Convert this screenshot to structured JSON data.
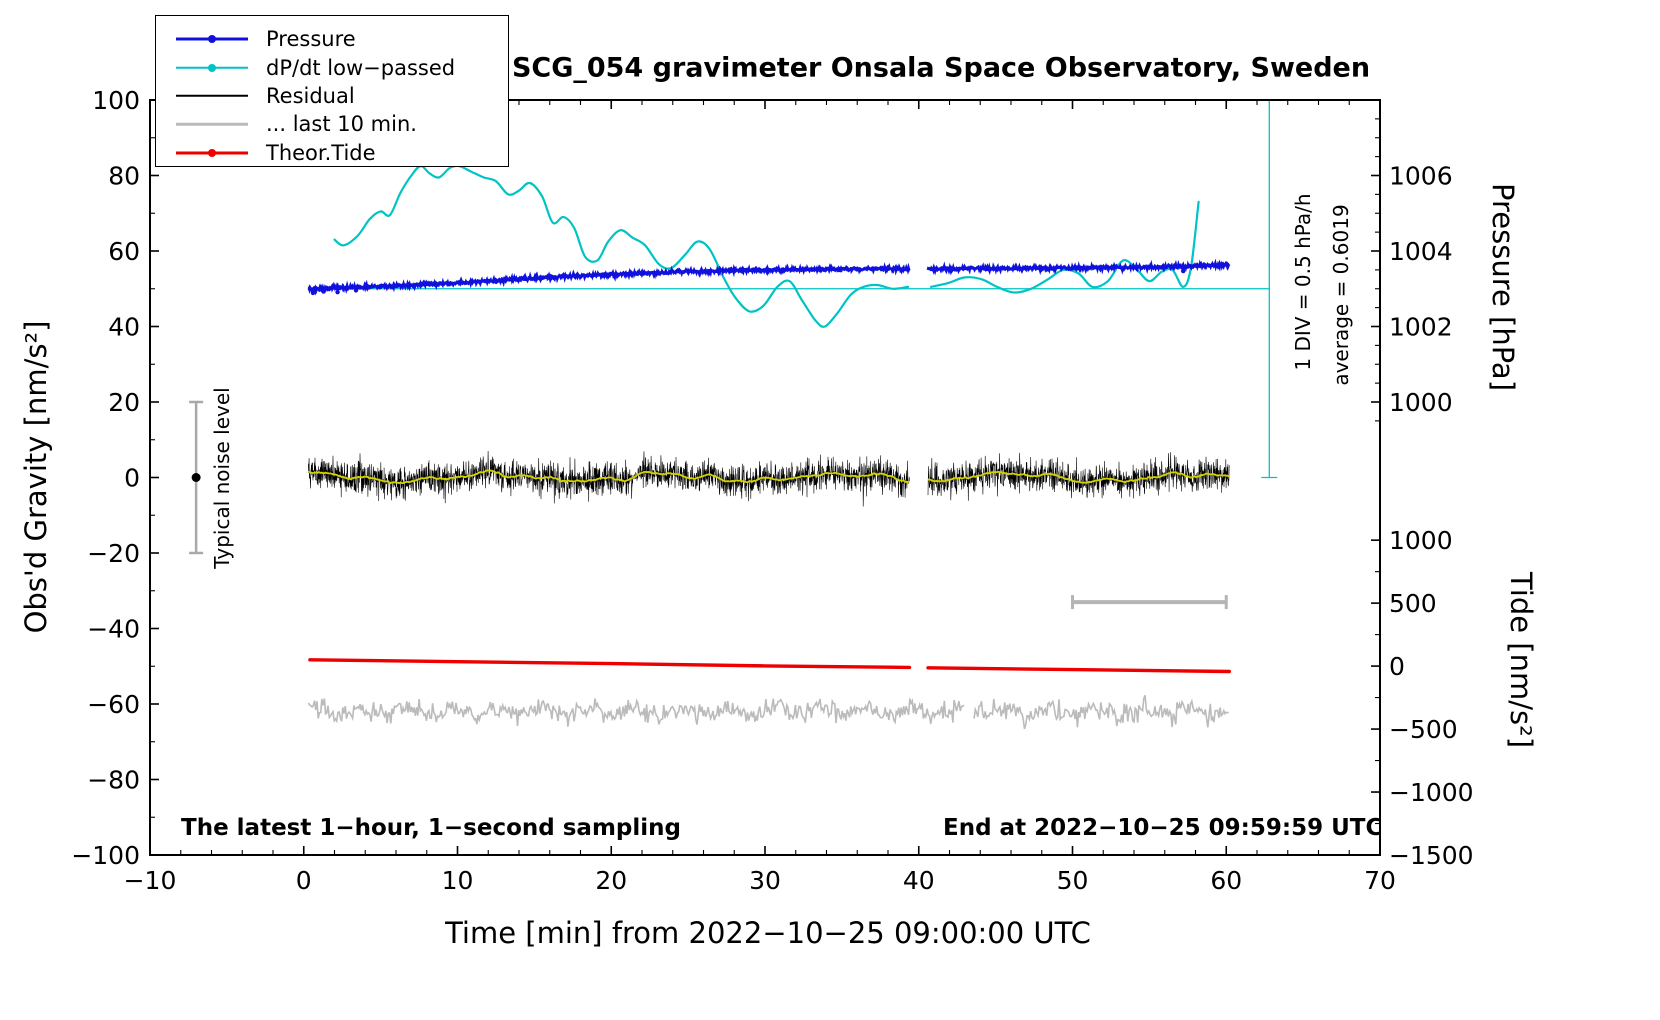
{
  "title": "SCG_054 gravimeter Onsala Space Observatory, Sweden",
  "footer": {
    "left": "The latest 1−hour, 1−second sampling",
    "right": "End at 2022−10−25 09:59:59 UTC"
  },
  "annotations": {
    "noise_level": "Typical noise level",
    "div_scale": "1 DIV = 0.5 hPa/h",
    "average": "average = 0.6019"
  },
  "axes": {
    "x": {
      "label": "Time [min] from 2022−10−25 09:00:00 UTC",
      "min": -10,
      "max": 70,
      "major_ticks": [
        -10,
        0,
        10,
        20,
        30,
        40,
        50,
        60,
        70
      ],
      "minor_step": 2
    },
    "y_left": {
      "label": "Obs'd Gravity [nm/s²]",
      "min": -100,
      "max": 100,
      "major_ticks": [
        -100,
        -80,
        -60,
        -40,
        -20,
        0,
        20,
        40,
        60,
        80,
        100
      ],
      "minor_step": 10
    },
    "y_pressure": {
      "label": "Pressure [hPa]",
      "major_ticks": [
        1000,
        1002,
        1004,
        1006
      ],
      "minor_step": 0.5,
      "hpa_at_y50": 1003,
      "gravity_units_per_hpa": 10,
      "minor_range": [
        999.5,
        1007.5
      ]
    },
    "y_tide": {
      "label": "Tide [nm/s²]",
      "major_ticks": [
        -1500,
        -1000,
        -500,
        0,
        500,
        1000
      ],
      "minor_step": 250,
      "value_min": -1500,
      "value_max": 1000,
      "y_min": -100,
      "y_max": -16.6
    }
  },
  "legend": {
    "items": [
      {
        "label": "Pressure",
        "color": "#1111dd",
        "width": 3,
        "marker": true
      },
      {
        "label": "dP/dt low−passed",
        "color": "#00c3c3",
        "width": 2.5,
        "marker": true
      },
      {
        "label": "Residual",
        "color": "#000000",
        "width": 2.5,
        "marker": false
      },
      {
        "label": "... last 10 min.",
        "color": "#bbbbbb",
        "width": 2.5,
        "marker": false
      },
      {
        "label": "Theor.Tide",
        "color": "#ee0000",
        "width": 3,
        "marker": true
      }
    ]
  },
  "chart_data": {
    "type": "line",
    "title": "SCG_054 gravimeter Onsala Space Observatory, Sweden",
    "xlabel": "Time [min] from 2022−10−25 09:00:00 UTC",
    "ylabel_left": "Obs'd Gravity [nm/s²]",
    "ylabel_right_top": "Pressure [hPa]",
    "ylabel_right_bottom": "Tide [nm/s²]",
    "xlim": [
      -10,
      70
    ],
    "ylim_left": [
      -100,
      100
    ],
    "grid": false,
    "legend_position": "top-left",
    "data_gap_x": [
      39.4,
      40.6
    ],
    "series": [
      {
        "name": "Pressure",
        "style": "noisy-line",
        "color": "#1111dd",
        "width": 2.8,
        "noise_amp": 0.22,
        "sample_step": 0.03,
        "anchors": [
          [
            0.3,
            50.0
          ],
          [
            5,
            50.6
          ],
          [
            10,
            51.5
          ],
          [
            15,
            52.8
          ],
          [
            20,
            53.8
          ],
          [
            25,
            54.6
          ],
          [
            30,
            55.0
          ],
          [
            35,
            55.2
          ],
          [
            39.4,
            55.3
          ],
          [
            40.6,
            55.3
          ],
          [
            45,
            55.4
          ],
          [
            50,
            55.5
          ],
          [
            55,
            55.7
          ],
          [
            58,
            56.0
          ],
          [
            60.2,
            56.4
          ]
        ],
        "outlier_points": [
          [
            0.6,
            48.9
          ],
          [
            1.3,
            49.3
          ],
          [
            2.2,
            49.1
          ],
          [
            3.4,
            49.6
          ],
          [
            57.2,
            54.7
          ]
        ]
      },
      {
        "name": "dP/dt low−passed",
        "style": "smooth-line",
        "color": "#00c3c3",
        "width": 2.2,
        "segments": [
          [
            [
              2.0,
              63
            ],
            [
              2.6,
              61.5
            ],
            [
              3.5,
              64
            ],
            [
              4.3,
              68.5
            ],
            [
              5.0,
              70.5
            ],
            [
              5.6,
              69.5
            ],
            [
              6.3,
              75.5
            ],
            [
              7.0,
              80
            ],
            [
              7.6,
              82.5
            ],
            [
              8.2,
              80.5
            ],
            [
              8.8,
              79.5
            ],
            [
              9.5,
              82
            ],
            [
              10.1,
              82.5
            ],
            [
              10.9,
              81
            ],
            [
              11.7,
              79.5
            ],
            [
              12.5,
              78.5
            ],
            [
              13.3,
              75
            ],
            [
              14.0,
              76
            ],
            [
              14.7,
              78
            ],
            [
              15.5,
              74.5
            ],
            [
              16.2,
              67.5
            ],
            [
              16.9,
              69
            ],
            [
              17.6,
              66
            ],
            [
              18.3,
              58.5
            ],
            [
              19.1,
              57.5
            ],
            [
              19.8,
              62.5
            ],
            [
              20.6,
              65.5
            ],
            [
              21.4,
              63.5
            ],
            [
              22.2,
              61.5
            ],
            [
              23.1,
              56.5
            ],
            [
              23.9,
              55.5
            ],
            [
              24.8,
              59
            ],
            [
              25.6,
              62.5
            ],
            [
              26.4,
              60.5
            ],
            [
              27.3,
              53
            ],
            [
              28.1,
              47.5
            ],
            [
              29.0,
              44
            ],
            [
              29.9,
              45.5
            ],
            [
              30.8,
              50.5
            ],
            [
              31.6,
              52
            ],
            [
              32.4,
              47
            ],
            [
              33.3,
              41.5
            ],
            [
              33.9,
              40
            ],
            [
              34.7,
              43.5
            ],
            [
              35.6,
              48.5
            ],
            [
              36.4,
              50.5
            ],
            [
              37.3,
              51
            ],
            [
              38.3,
              50
            ],
            [
              39.3,
              50.5
            ]
          ],
          [
            [
              40.8,
              50.5
            ],
            [
              41.9,
              51.5
            ],
            [
              43.0,
              53
            ],
            [
              44.1,
              52.5
            ],
            [
              45.1,
              50.5
            ],
            [
              46.2,
              49
            ],
            [
              47.3,
              50
            ],
            [
              48.4,
              52.5
            ],
            [
              49.4,
              55
            ],
            [
              50.4,
              54
            ],
            [
              51.3,
              50.5
            ],
            [
              52.3,
              52
            ],
            [
              53.3,
              57.5
            ],
            [
              54.2,
              55
            ],
            [
              55.0,
              52
            ],
            [
              55.8,
              54.5
            ],
            [
              56.5,
              55
            ],
            [
              57.2,
              50.5
            ],
            [
              57.7,
              55.5
            ],
            [
              58.2,
              73
            ]
          ]
        ]
      },
      {
        "name": "Residual",
        "style": "noise",
        "color": "#000000",
        "width": 0.6,
        "base": 0,
        "noise_amp": 2.1,
        "sample_step": 0.0167,
        "x_range": [
          0.3,
          60.2
        ]
      },
      {
        "name": "Residual low−pass",
        "style": "moving-average-of-residual",
        "color": "#d2d200",
        "width": 1.8,
        "window": 61
      },
      {
        "name": "... last 10 min.",
        "style": "noise",
        "color": "#bbbbbb",
        "width": 1.6,
        "base": -62,
        "noise_amp": 1.3,
        "sample_step": 0.08,
        "x_range": [
          0.3,
          60.2
        ],
        "gap_x": [
          43.0,
          43.6
        ]
      },
      {
        "name": "Theor.Tide",
        "style": "line",
        "color": "#ee0000",
        "width": 3.4,
        "segments": [
          [
            [
              0.4,
              -48.3
            ],
            [
              10,
              -48.8
            ],
            [
              20,
              -49.3
            ],
            [
              30,
              -49.9
            ],
            [
              39.4,
              -50.3
            ]
          ],
          [
            [
              40.6,
              -50.4
            ],
            [
              50,
              -50.9
            ],
            [
              60.2,
              -51.4
            ]
          ]
        ]
      }
    ],
    "references": {
      "average_line": {
        "color": "#00c3c3",
        "y": 50,
        "x_range": [
          0.3,
          62.8
        ]
      },
      "div_scale_line": {
        "color": "#00c3c3",
        "x": 62.8,
        "y_range": [
          0,
          100
        ]
      },
      "noise_bar": {
        "color": "#a9a9a9",
        "x": -7,
        "y_range": [
          -20,
          20
        ],
        "dot_y": 0
      },
      "scale_bar": {
        "color": "#b5b5b5",
        "y": -33,
        "x_range": [
          50,
          60
        ]
      }
    }
  }
}
